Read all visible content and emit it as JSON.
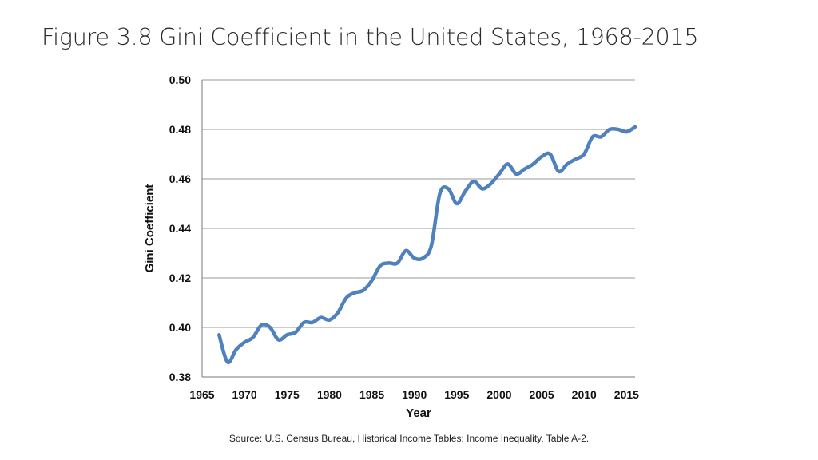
{
  "title": "Figure 3.8 Gini Coefficient in the United States, 1968-2015",
  "source": "Source: U.S. Census Bureau, Historical Income Tables: Income Inequality, Table A-2.",
  "chart_data": {
    "type": "line",
    "xlabel": "Year",
    "ylabel": "Gini Coefficient",
    "xlim": [
      1965,
      2016
    ],
    "ylim": [
      0.38,
      0.5
    ],
    "x_ticks": [
      "1965",
      "1970",
      "1975",
      "1980",
      "1985",
      "1990",
      "1995",
      "2000",
      "2005",
      "2010",
      "2015"
    ],
    "y_ticks": [
      "0.38",
      "0.40",
      "0.42",
      "0.44",
      "0.46",
      "0.48",
      "0.50"
    ],
    "grid": "horizontal",
    "line_color": "#4f81bd",
    "series": [
      {
        "x": [
          1967,
          1968,
          1969,
          1970,
          1971,
          1972,
          1973,
          1974,
          1975,
          1976,
          1977,
          1978,
          1979,
          1980,
          1981,
          1982,
          1983,
          1984,
          1985,
          1986,
          1987,
          1988,
          1989,
          1990,
          1991,
          1992,
          1993,
          1994,
          1995,
          1996,
          1997,
          1998,
          1999,
          2000,
          2001,
          2002,
          2003,
          2004,
          2005,
          2006,
          2007,
          2008,
          2009,
          2010,
          2011,
          2012,
          2013,
          2014,
          2015,
          2016
        ],
        "y": [
          0.397,
          0.386,
          0.391,
          0.394,
          0.396,
          0.401,
          0.4,
          0.395,
          0.397,
          0.398,
          0.402,
          0.402,
          0.404,
          0.403,
          0.406,
          0.412,
          0.414,
          0.415,
          0.419,
          0.425,
          0.426,
          0.426,
          0.431,
          0.428,
          0.428,
          0.433,
          0.454,
          0.456,
          0.45,
          0.455,
          0.459,
          0.456,
          0.458,
          0.462,
          0.466,
          0.462,
          0.464,
          0.466,
          0.469,
          0.47,
          0.463,
          0.466,
          0.468,
          0.47,
          0.477,
          0.477,
          0.48,
          0.48,
          0.479,
          0.481
        ]
      }
    ]
  }
}
